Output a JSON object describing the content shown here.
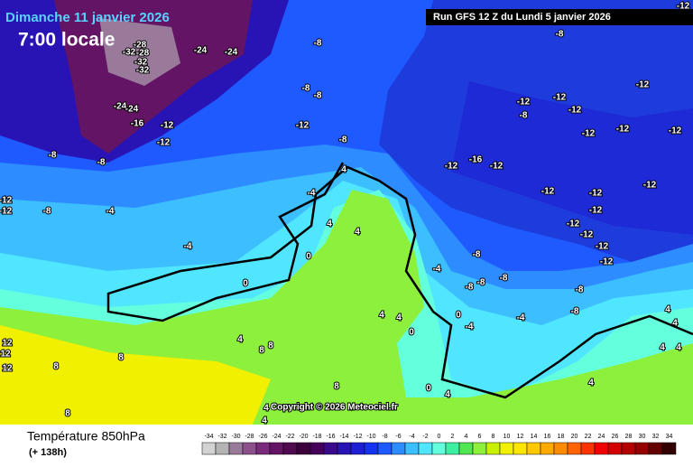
{
  "header": {
    "date": "Dimanche 11 janvier 2026",
    "time": "7:00 locale",
    "run": "Run GFS 12 Z du Lundi 5 janvier 2026"
  },
  "copyright": "Copyright © 2026 Meteociel.fr",
  "footer": {
    "title": "Température 850hPa",
    "subtitle": "(+ 138h)"
  },
  "legend": {
    "values": [
      -34,
      -32,
      -30,
      -28,
      -26,
      -24,
      -22,
      -20,
      -18,
      -16,
      -14,
      -12,
      -10,
      -8,
      -6,
      -4,
      -2,
      0,
      2,
      4,
      6,
      8,
      10,
      12,
      14,
      16,
      18,
      20,
      22,
      24,
      26,
      28,
      30,
      32,
      34
    ],
    "colors": [
      "#d2d2d2",
      "#b4b4b4",
      "#9a7a9a",
      "#8c508c",
      "#7a2a7a",
      "#641464",
      "#500a50",
      "#3c003c",
      "#46005a",
      "#3a0a8a",
      "#2814b4",
      "#1e1ed2",
      "#1432f0",
      "#1e5aff",
      "#2d8cff",
      "#3cbeff",
      "#50e6ff",
      "#64ffdc",
      "#3cf0a0",
      "#50e650",
      "#8cf03c",
      "#c8f000",
      "#f0f000",
      "#ffe600",
      "#ffc800",
      "#ffaa00",
      "#ff8c00",
      "#ff6400",
      "#ff3200",
      "#f00000",
      "#d20000",
      "#b40000",
      "#960000",
      "#640000",
      "#320000"
    ]
  },
  "map": {
    "labels": [
      "-12",
      "-8",
      "-28",
      "-32",
      "-28",
      "-32",
      "-32",
      "-24",
      "-24",
      "-8",
      "-8",
      "-8",
      "-12",
      "-12",
      "-12",
      "-12",
      "-8",
      "-12",
      "-12",
      "-12",
      "-24",
      "-24",
      "-16",
      "-12",
      "-12",
      "-12",
      "-8",
      "-8",
      "-8",
      "-12",
      "-16",
      "-12",
      "-12",
      "-12",
      "-12",
      "-4",
      "4",
      "-12",
      "-12",
      "-8",
      "-4",
      "-12",
      "-12",
      "-12",
      "-12",
      "-12",
      "-4",
      "4",
      "4",
      "-8",
      "-4",
      "0",
      "0",
      "-8",
      "-8",
      "-8",
      "-8",
      "-8",
      "4",
      "4",
      "0",
      "-4",
      "-4",
      "0",
      "4",
      "4",
      "4",
      "4",
      "4",
      "8",
      "8",
      "8",
      "8",
      "12",
      "12",
      "12",
      "0",
      "4",
      "8",
      "4",
      "8",
      "4",
      "4"
    ]
  }
}
